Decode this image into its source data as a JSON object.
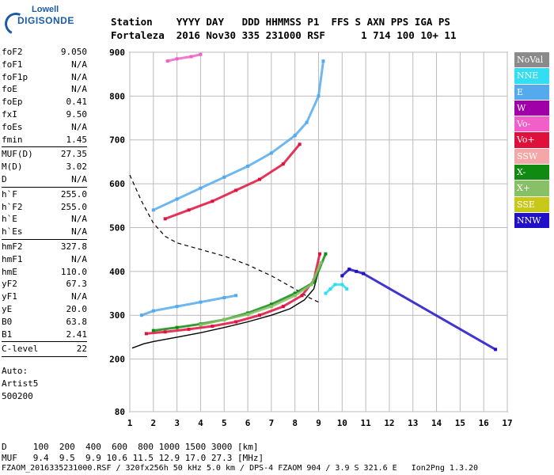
{
  "logo": {
    "line1": "Lowell",
    "line2": "DIGISONDE"
  },
  "header": {
    "row1": "Station    YYYY DAY   DDD HHMMSS P1  FFS S AXN PPS IGA PS",
    "row2": "Fortaleza  2016 Nov30 335 231000 RSF      1 714 100 10+ 11"
  },
  "params": {
    "group1": [
      {
        "name": "foF2",
        "value": "9.050"
      },
      {
        "name": "foF1",
        "value": "N/A"
      },
      {
        "name": "foF1p",
        "value": "N/A"
      },
      {
        "name": "foE",
        "value": "N/A"
      },
      {
        "name": "foEp",
        "value": "0.41"
      },
      {
        "name": "fxI",
        "value": "9.50"
      },
      {
        "name": "foEs",
        "value": "N/A"
      },
      {
        "name": "fmin",
        "value": "1.45"
      }
    ],
    "group2": [
      {
        "name": "MUF(D)",
        "value": "27.35"
      },
      {
        "name": "M(D)",
        "value": "3.02"
      },
      {
        "name": "D",
        "value": "N/A"
      }
    ],
    "group3": [
      {
        "name": "h`F",
        "value": "255.0"
      },
      {
        "name": "h`F2",
        "value": "255.0"
      },
      {
        "name": "h`E",
        "value": "N/A"
      },
      {
        "name": "h`Es",
        "value": "N/A"
      }
    ],
    "group4": [
      {
        "name": "hmF2",
        "value": "327.8"
      },
      {
        "name": "hmF1",
        "value": "N/A"
      },
      {
        "name": "hmE",
        "value": "110.0"
      },
      {
        "name": "yF2",
        "value": "67.3"
      },
      {
        "name": "yF1",
        "value": "N/A"
      },
      {
        "name": "yE",
        "value": "20.0"
      },
      {
        "name": "B0",
        "value": "63.8"
      },
      {
        "name": "B1",
        "value": "2.41"
      }
    ],
    "group5": [
      {
        "name": "C-level",
        "value": "22"
      }
    ],
    "auto_lines": [
      "Auto:",
      "Artist5",
      "500200"
    ]
  },
  "legend": [
    {
      "label": "NoVal",
      "color": "#8a8a8a"
    },
    {
      "label": "NNE",
      "color": "#33ddf2"
    },
    {
      "label": "E",
      "color": "#55aaee"
    },
    {
      "label": "W",
      "color": "#a000a8"
    },
    {
      "label": "Vo-",
      "color": "#f060c8"
    },
    {
      "label": "Vo+",
      "color": "#e0103c"
    },
    {
      "label": "SSW",
      "color": "#f4a7a7"
    },
    {
      "label": "X-",
      "color": "#108a10"
    },
    {
      "label": "X+",
      "color": "#88c068"
    },
    {
      "label": "SSE",
      "color": "#c8c818"
    },
    {
      "label": "NNW",
      "color": "#2010c8"
    }
  ],
  "footer": {
    "row1": "D     100  200  400  600  800 1000 1500 3000 [km]",
    "row2": "MUF   9.4  9.5  9.9 10.6 11.5 12.9 17.0 27.3 [MHz]",
    "row3": "FZAOM_2016335231000.RSF / 320fx256h 50 kHz 5.0 km / DPS-4 FZAOM 904 / 3.9 S 321.6 E   Ion2Png 1.3.20"
  },
  "chart_data": {
    "type": "scatter",
    "title": "",
    "xlabel": "",
    "ylabel": "",
    "xlim": [
      1,
      17
    ],
    "ylim": [
      80,
      900
    ],
    "xticks": [
      1,
      2,
      3,
      4,
      5,
      6,
      7,
      8,
      9,
      10,
      11,
      12,
      13,
      14,
      15,
      16,
      17
    ],
    "yticks": [
      80,
      200,
      300,
      400,
      500,
      600,
      700,
      800,
      900
    ],
    "grid": true,
    "traces": [
      {
        "name": "E",
        "color": "#55aaee",
        "x": [
          1.5,
          2,
          3,
          4,
          5,
          5.5
        ],
        "y": [
          300,
          310,
          320,
          330,
          340,
          345
        ]
      },
      {
        "name": "E",
        "color": "#55aaee",
        "x": [
          2,
          3,
          4,
          5,
          6,
          7,
          8,
          8.5,
          9,
          9.2
        ],
        "y": [
          540,
          565,
          590,
          615,
          640,
          670,
          710,
          740,
          800,
          880
        ]
      },
      {
        "name": "Vo+",
        "color": "#e0103c",
        "x": [
          1.7,
          2.5,
          3.5,
          4.5,
          5.5,
          6.5,
          7.5,
          8.3,
          8.8,
          9.05
        ],
        "y": [
          258,
          262,
          268,
          275,
          285,
          300,
          320,
          345,
          380,
          440
        ]
      },
      {
        "name": "Vo+",
        "color": "#e0103c",
        "x": [
          2.5,
          3.5,
          4.5,
          5.5,
          6.5,
          7.5,
          8.2
        ],
        "y": [
          520,
          540,
          560,
          585,
          610,
          645,
          690
        ]
      },
      {
        "name": "X-",
        "color": "#108a10",
        "x": [
          2,
          3,
          4,
          5,
          6,
          7,
          8,
          8.8,
          9.3
        ],
        "y": [
          265,
          272,
          280,
          290,
          305,
          325,
          350,
          375,
          440
        ]
      },
      {
        "name": "NNE",
        "color": "#33ddf2",
        "x": [
          9.3,
          9.5,
          9.7,
          10,
          10.2
        ],
        "y": [
          350,
          360,
          370,
          370,
          360
        ]
      },
      {
        "name": "NNW",
        "color": "#2010c8",
        "x": [
          10,
          10.3,
          10.6,
          10.9,
          16.5
        ],
        "y": [
          390,
          405,
          400,
          395,
          222
        ]
      },
      {
        "name": "Vo-",
        "color": "#f060c8",
        "x": [
          2.6,
          3,
          3.6,
          4
        ],
        "y": [
          880,
          885,
          890,
          895
        ]
      },
      {
        "name": "X+",
        "color": "#88c068",
        "x": [
          4,
          5,
          6,
          7,
          8,
          8.7,
          9.1
        ],
        "y": [
          278,
          290,
          302,
          320,
          345,
          370,
          420
        ]
      }
    ],
    "profile": {
      "color": "#000",
      "x": [
        1.1,
        1.6,
        2,
        3,
        4,
        5,
        6,
        7,
        7.8,
        8.4,
        8.8,
        9.0
      ],
      "y": [
        225,
        235,
        240,
        250,
        260,
        272,
        285,
        300,
        315,
        335,
        360,
        400
      ]
    },
    "model": {
      "color": "#000",
      "dash": true,
      "x": [
        1,
        1.5,
        2,
        2.5,
        3,
        4,
        5,
        6,
        7,
        8,
        8.6,
        9.0
      ],
      "y": [
        620,
        560,
        510,
        480,
        465,
        450,
        435,
        415,
        390,
        360,
        340,
        330
      ]
    }
  }
}
